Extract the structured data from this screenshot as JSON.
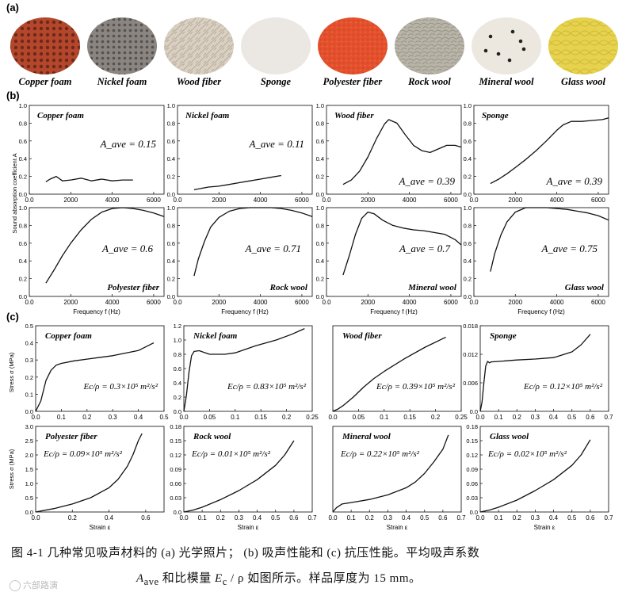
{
  "section_labels": {
    "a": "(a)",
    "b": "(b)",
    "c": "(c)"
  },
  "materials": [
    {
      "name": "Copper foam",
      "color": "#b5462c"
    },
    {
      "name": "Nickel foam",
      "color": "#8a8580"
    },
    {
      "name": "Wood fiber",
      "color": "#d9d0c2"
    },
    {
      "name": "Sponge",
      "color": "#ebe7e3"
    },
    {
      "name": "Polyester fiber",
      "color": "#e4502c"
    },
    {
      "name": "Rock wool",
      "color": "#b9b4a8"
    },
    {
      "name": "Mineral wool",
      "color": "#ece8e0"
    },
    {
      "name": "Glass wool",
      "color": "#e6d24c"
    }
  ],
  "caption": {
    "line1": "图 4-1 几种常见吸声材料的 (a) 光学照片； (b) 吸声性能和 (c) 抗压性能。平均吸声系数",
    "line2_symbol": "A",
    "line2_sub": "ave",
    "line2_mid": " 和比模量 ",
    "line2_E": "E",
    "line2_Esub": "c",
    "line2_rest": " / ρ 如图所示。样品厚度为 15 mm。"
  },
  "watermark": "六部路演",
  "chart_data": [
    {
      "type": "line",
      "panel": "b",
      "xlabel": "Frequency f (Hz)",
      "ylabel": "Sound absorption coefficient A",
      "xlim": [
        0,
        6500
      ],
      "ylim": [
        0,
        1.0
      ],
      "xticks": [
        0,
        2000,
        4000,
        6000
      ],
      "yticks": [
        0.0,
        0.2,
        0.4,
        0.6,
        0.8,
        1.0
      ],
      "grid": false,
      "subplots": [
        {
          "title": "Copper foam",
          "annotation": "A_ave = 0.15",
          "ann_pos": "upper-right",
          "x": [
            800,
            1000,
            1300,
            1600,
            2000,
            2500,
            3000,
            3500,
            4000,
            4500,
            5000
          ],
          "y": [
            0.14,
            0.17,
            0.2,
            0.15,
            0.16,
            0.18,
            0.15,
            0.17,
            0.15,
            0.16,
            0.16
          ]
        },
        {
          "title": "Nickel foam",
          "annotation": "A_ave = 0.11",
          "ann_pos": "upper-right",
          "x": [
            800,
            1500,
            2000,
            2500,
            3000,
            3500,
            4000,
            4500,
            5000
          ],
          "y": [
            0.05,
            0.08,
            0.09,
            0.11,
            0.13,
            0.15,
            0.17,
            0.19,
            0.21
          ]
        },
        {
          "title": "Wood fiber",
          "annotation": "A_ave = 0.39",
          "ann_pos": "lower-right",
          "x": [
            800,
            1200,
            1600,
            2000,
            2400,
            2800,
            3000,
            3400,
            3800,
            4200,
            4600,
            5000,
            5400,
            5800,
            6200,
            6500
          ],
          "y": [
            0.11,
            0.16,
            0.26,
            0.42,
            0.62,
            0.79,
            0.84,
            0.8,
            0.67,
            0.55,
            0.49,
            0.47,
            0.51,
            0.55,
            0.55,
            0.53
          ]
        },
        {
          "title": "Sponge",
          "annotation": "A_ave = 0.39",
          "ann_pos": "lower-right",
          "x": [
            800,
            1200,
            1600,
            2000,
            2500,
            3000,
            3500,
            4000,
            4300,
            4700,
            5200,
            5700,
            6200,
            6500
          ],
          "y": [
            0.12,
            0.17,
            0.23,
            0.3,
            0.39,
            0.49,
            0.6,
            0.72,
            0.78,
            0.82,
            0.82,
            0.83,
            0.84,
            0.86
          ]
        },
        {
          "title": "Polyester fiber",
          "annotation": "A_ave = 0.6",
          "ann_pos": "middle-right",
          "x": [
            800,
            1200,
            1600,
            2000,
            2500,
            3000,
            3500,
            4000,
            4500,
            5000,
            5500,
            6000,
            6500
          ],
          "y": [
            0.15,
            0.3,
            0.46,
            0.6,
            0.75,
            0.87,
            0.95,
            0.99,
            1.0,
            0.99,
            0.97,
            0.94,
            0.9
          ]
        },
        {
          "title": "Rock wool",
          "annotation": "A_ave = 0.71",
          "ann_pos": "middle-right",
          "x": [
            800,
            1000,
            1300,
            1600,
            2000,
            2500,
            3000,
            3500,
            4000,
            4500,
            5000,
            5500,
            6000,
            6500
          ],
          "y": [
            0.23,
            0.42,
            0.62,
            0.78,
            0.89,
            0.96,
            0.99,
            1.0,
            1.0,
            1.0,
            0.99,
            0.97,
            0.94,
            0.9
          ]
        },
        {
          "title": "Mineral wool",
          "annotation": "A_ave = 0.7",
          "ann_pos": "middle-right",
          "x": [
            800,
            1100,
            1400,
            1700,
            2000,
            2300,
            2700,
            3200,
            3700,
            4200,
            4700,
            5200,
            5700,
            6200,
            6500
          ],
          "y": [
            0.24,
            0.46,
            0.7,
            0.88,
            0.95,
            0.93,
            0.86,
            0.8,
            0.77,
            0.75,
            0.74,
            0.72,
            0.7,
            0.64,
            0.58
          ]
        },
        {
          "title": "Glass wool",
          "annotation": "A_ave = 0.75",
          "ann_pos": "middle-right",
          "x": [
            800,
            1000,
            1300,
            1600,
            2000,
            2500,
            3000,
            3500,
            4000,
            4500,
            5000,
            5500,
            6000,
            6500
          ],
          "y": [
            0.28,
            0.48,
            0.69,
            0.84,
            0.95,
            1.0,
            1.0,
            1.0,
            0.99,
            0.98,
            0.96,
            0.94,
            0.91,
            0.86
          ]
        }
      ]
    },
    {
      "type": "line",
      "panel": "c",
      "xlabel": "Strain ε",
      "ylabel": "Stress σ (MPa)",
      "grid": false,
      "subplots": [
        {
          "title": "Copper foam",
          "annotation": "Ec/ρ = 0.3×10⁵ m²/s²",
          "xlim": [
            0,
            0.5
          ],
          "ylim": [
            0,
            0.5
          ],
          "xticks": [
            0.0,
            0.1,
            0.2,
            0.3,
            0.4,
            0.5
          ],
          "yticks": [
            0.0,
            0.1,
            0.2,
            0.3,
            0.4,
            0.5
          ],
          "x": [
            0,
            0.02,
            0.04,
            0.06,
            0.08,
            0.1,
            0.15,
            0.2,
            0.3,
            0.4,
            0.46
          ],
          "y": [
            0,
            0.06,
            0.18,
            0.24,
            0.27,
            0.28,
            0.295,
            0.305,
            0.325,
            0.355,
            0.4
          ]
        },
        {
          "title": "Nickel foam",
          "annotation": "Ec/ρ = 0.83×10⁵ m²/s²",
          "xlim": [
            0,
            0.25
          ],
          "ylim": [
            0,
            1.2
          ],
          "xticks": [
            0.0,
            0.05,
            0.1,
            0.15,
            0.2,
            0.25
          ],
          "yticks": [
            0.0,
            0.2,
            0.4,
            0.6,
            0.8,
            1.0,
            1.2
          ],
          "x": [
            0,
            0.005,
            0.01,
            0.015,
            0.02,
            0.03,
            0.05,
            0.08,
            0.1,
            0.14,
            0.18,
            0.21,
            0.235
          ],
          "y": [
            0,
            0.22,
            0.55,
            0.78,
            0.84,
            0.85,
            0.8,
            0.8,
            0.82,
            0.92,
            1.0,
            1.08,
            1.16
          ]
        },
        {
          "title": "Wood fiber",
          "annotation": "Ec/ρ = 0.39×10⁵ m²/s²",
          "xlim": [
            0,
            0.25
          ],
          "ylim": [
            0,
            3.0
          ],
          "xticks": [
            0.0,
            0.05,
            0.1,
            0.15,
            0.2,
            0.25
          ],
          "yticks": [],
          "x": [
            0,
            0.01,
            0.02,
            0.04,
            0.06,
            0.08,
            0.1,
            0.14,
            0.18,
            0.22
          ],
          "y": [
            0,
            0.08,
            0.2,
            0.5,
            0.85,
            1.15,
            1.4,
            1.85,
            2.25,
            2.6
          ]
        },
        {
          "title": "Sponge",
          "annotation": "Ec/ρ = 0.12×10⁵ m²/s²",
          "xlim": [
            0,
            0.7
          ],
          "ylim": [
            0,
            0.018
          ],
          "xticks": [
            0.0,
            0.1,
            0.2,
            0.3,
            0.4,
            0.5,
            0.6,
            0.7
          ],
          "yticks": [
            0.0,
            0.006,
            0.012,
            0.018
          ],
          "x": [
            0,
            0.01,
            0.02,
            0.03,
            0.04,
            0.05,
            0.06,
            0.1,
            0.2,
            0.3,
            0.4,
            0.5,
            0.55,
            0.6
          ],
          "y": [
            0,
            0.002,
            0.006,
            0.0095,
            0.0105,
            0.0102,
            0.0104,
            0.0105,
            0.0108,
            0.011,
            0.0113,
            0.0125,
            0.014,
            0.0162
          ]
        },
        {
          "title": "Polyester fiber",
          "annotation": "Ec/ρ = 0.09×10⁵ m²/s²",
          "xlim": [
            0,
            0.7
          ],
          "ylim": [
            0,
            3.0
          ],
          "xticks": [
            0.0,
            0.2,
            0.4,
            0.6
          ],
          "yticks": [
            0.0,
            0.5,
            1.0,
            1.5,
            2.0,
            2.5,
            3.0
          ],
          "x": [
            0,
            0.1,
            0.2,
            0.3,
            0.4,
            0.45,
            0.5,
            0.53,
            0.56,
            0.58
          ],
          "y": [
            0,
            0.12,
            0.28,
            0.5,
            0.85,
            1.15,
            1.6,
            2.0,
            2.5,
            2.75
          ]
        },
        {
          "title": "Rock wool",
          "annotation": "Ec/ρ = 0.01×10⁵ m²/s²",
          "xlim": [
            0,
            0.7
          ],
          "ylim": [
            0,
            0.18
          ],
          "xticks": [
            0.0,
            0.1,
            0.2,
            0.3,
            0.4,
            0.5,
            0.6,
            0.7
          ],
          "yticks": [
            0.0,
            0.03,
            0.06,
            0.09,
            0.12,
            0.15,
            0.18
          ],
          "x": [
            0,
            0.05,
            0.1,
            0.2,
            0.3,
            0.4,
            0.5,
            0.55,
            0.6
          ],
          "y": [
            0,
            0.004,
            0.01,
            0.026,
            0.045,
            0.068,
            0.098,
            0.12,
            0.15
          ]
        },
        {
          "title": "Mineral wool",
          "annotation": "Ec/ρ = 0.22×10⁵ m²/s²",
          "xlim": [
            0,
            0.7
          ],
          "ylim": [
            0,
            3.0
          ],
          "xticks": [
            0.0,
            0.1,
            0.2,
            0.3,
            0.4,
            0.5,
            0.6,
            0.7
          ],
          "yticks": [],
          "x": [
            0,
            0.02,
            0.05,
            0.1,
            0.2,
            0.3,
            0.4,
            0.45,
            0.5,
            0.55,
            0.6,
            0.63
          ],
          "y": [
            0,
            0.15,
            0.28,
            0.33,
            0.44,
            0.6,
            0.85,
            1.05,
            1.35,
            1.75,
            2.2,
            2.7
          ]
        },
        {
          "title": "Glass wool",
          "annotation": "Ec/ρ = 0.02×10⁵ m²/s²",
          "xlim": [
            0,
            0.7
          ],
          "ylim": [
            0,
            0.18
          ],
          "xticks": [
            0.0,
            0.1,
            0.2,
            0.3,
            0.4,
            0.5,
            0.6,
            0.7
          ],
          "yticks": [
            0.0,
            0.03,
            0.06,
            0.09,
            0.12,
            0.15,
            0.18
          ],
          "x": [
            0,
            0.05,
            0.1,
            0.2,
            0.3,
            0.4,
            0.5,
            0.55,
            0.6
          ],
          "y": [
            0,
            0.004,
            0.01,
            0.025,
            0.045,
            0.068,
            0.098,
            0.12,
            0.152
          ]
        }
      ]
    }
  ]
}
